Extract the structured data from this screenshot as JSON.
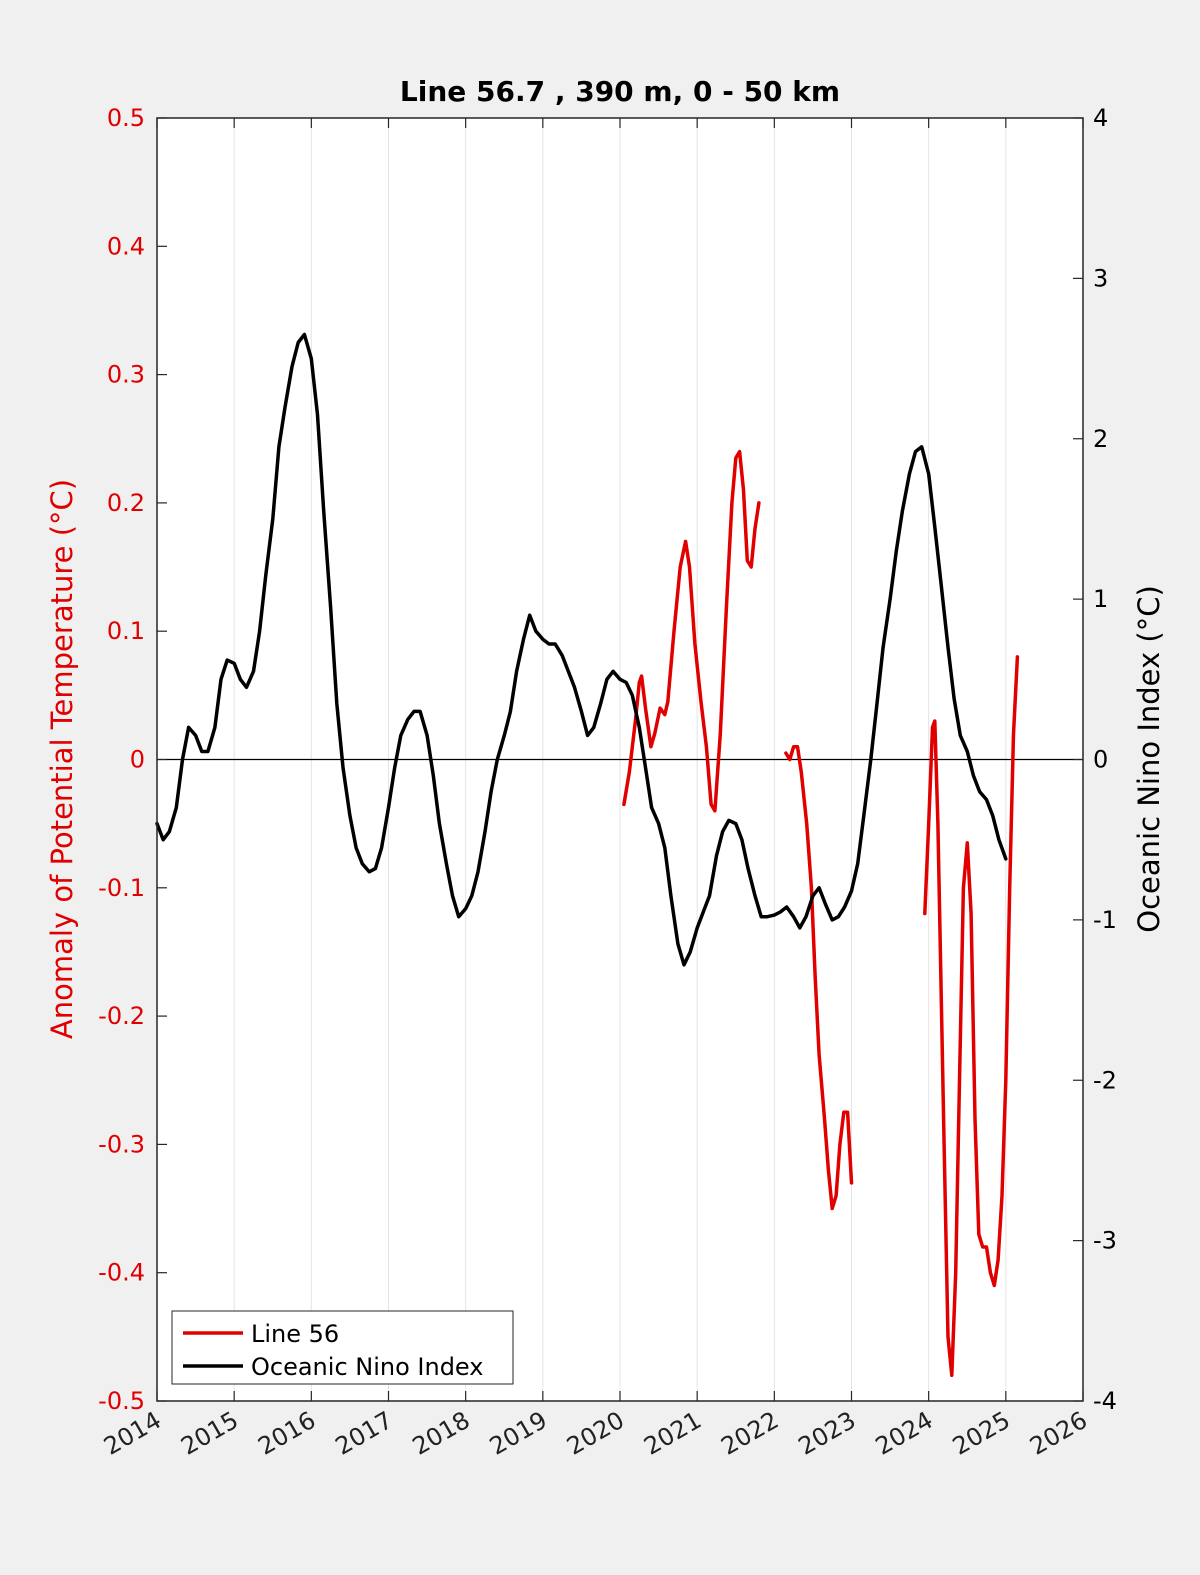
{
  "chart_data": {
    "type": "line",
    "title": "Line 56.7 , 390 m, 0 - 50 km",
    "ylabel_left": "Anomaly of Potential Temperature (°C)",
    "ylabel_right": "Oceanic Nino Index (°C)",
    "xlabel": "",
    "xlim": [
      2014,
      2026
    ],
    "ylim_left": [
      -0.5,
      0.5
    ],
    "ylim_right": [
      -4,
      4
    ],
    "x_ticks": [
      "2014",
      "2015",
      "2016",
      "2017",
      "2018",
      "2019",
      "2020",
      "2021",
      "2022",
      "2023",
      "2024",
      "2025",
      "2026"
    ],
    "y_left_ticks": [
      "0.5",
      "0.4",
      "0.3",
      "0.2",
      "0.1",
      "0",
      "-0.1",
      "-0.2",
      "-0.3",
      "-0.4",
      "-0.5"
    ],
    "y_right_ticks": [
      "4",
      "3",
      "2",
      "1",
      "0",
      "-1",
      "-2",
      "-3",
      "-4"
    ],
    "grid": "vertical",
    "legend_position": "bottom-left",
    "colors": {
      "line56": "#e00000",
      "oni": "#000000",
      "left_axis": "#e00000",
      "right_axis": "#000000"
    },
    "series": [
      {
        "name": "Line 56",
        "axis": "left",
        "color": "#e00000",
        "segments": [
          [
            [
              2020.05,
              -0.035
            ],
            [
              2020.12,
              -0.01
            ],
            [
              2020.2,
              0.03
            ],
            [
              2020.25,
              0.06
            ],
            [
              2020.28,
              0.065
            ],
            [
              2020.33,
              0.04
            ],
            [
              2020.4,
              0.01
            ],
            [
              2020.45,
              0.02
            ],
            [
              2020.52,
              0.04
            ],
            [
              2020.58,
              0.035
            ],
            [
              2020.62,
              0.045
            ],
            [
              2020.7,
              0.1
            ],
            [
              2020.78,
              0.15
            ],
            [
              2020.85,
              0.17
            ],
            [
              2020.9,
              0.15
            ],
            [
              2020.97,
              0.09
            ],
            [
              2021.05,
              0.045
            ],
            [
              2021.12,
              0.01
            ],
            [
              2021.18,
              -0.035
            ],
            [
              2021.23,
              -0.04
            ],
            [
              2021.3,
              0.02
            ],
            [
              2021.38,
              0.12
            ],
            [
              2021.45,
              0.2
            ],
            [
              2021.5,
              0.235
            ],
            [
              2021.55,
              0.24
            ],
            [
              2021.6,
              0.21
            ],
            [
              2021.65,
              0.155
            ],
            [
              2021.7,
              0.15
            ],
            [
              2021.75,
              0.18
            ],
            [
              2021.8,
              0.2
            ]
          ],
          [
            [
              2022.15,
              0.005
            ],
            [
              2022.2,
              0.0
            ],
            [
              2022.25,
              0.01
            ],
            [
              2022.3,
              0.01
            ],
            [
              2022.35,
              -0.01
            ],
            [
              2022.42,
              -0.05
            ],
            [
              2022.48,
              -0.1
            ],
            [
              2022.53,
              -0.17
            ],
            [
              2022.58,
              -0.23
            ],
            [
              2022.65,
              -0.28
            ],
            [
              2022.7,
              -0.32
            ],
            [
              2022.75,
              -0.35
            ],
            [
              2022.8,
              -0.34
            ],
            [
              2022.85,
              -0.3
            ],
            [
              2022.9,
              -0.275
            ],
            [
              2022.95,
              -0.275
            ],
            [
              2023.0,
              -0.33
            ]
          ],
          [
            [
              2023.95,
              -0.12
            ],
            [
              2024.0,
              -0.05
            ],
            [
              2024.05,
              0.025
            ],
            [
              2024.08,
              0.03
            ],
            [
              2024.12,
              -0.05
            ],
            [
              2024.2,
              -0.3
            ],
            [
              2024.25,
              -0.45
            ],
            [
              2024.3,
              -0.48
            ],
            [
              2024.35,
              -0.4
            ],
            [
              2024.4,
              -0.25
            ],
            [
              2024.45,
              -0.1
            ],
            [
              2024.5,
              -0.065
            ],
            [
              2024.55,
              -0.12
            ],
            [
              2024.6,
              -0.28
            ],
            [
              2024.65,
              -0.37
            ],
            [
              2024.7,
              -0.38
            ],
            [
              2024.75,
              -0.38
            ],
            [
              2024.8,
              -0.4
            ],
            [
              2024.85,
              -0.41
            ],
            [
              2024.9,
              -0.39
            ],
            [
              2024.95,
              -0.34
            ],
            [
              2025.0,
              -0.25
            ],
            [
              2025.05,
              -0.1
            ],
            [
              2025.1,
              0.02
            ],
            [
              2025.15,
              0.08
            ]
          ]
        ]
      },
      {
        "name": "Oceanic Nino Index",
        "axis": "right",
        "color": "#000000",
        "points": [
          [
            2014.0,
            -0.4
          ],
          [
            2014.08,
            -0.5
          ],
          [
            2014.16,
            -0.45
          ],
          [
            2014.25,
            -0.3
          ],
          [
            2014.33,
            0.0
          ],
          [
            2014.41,
            0.2
          ],
          [
            2014.5,
            0.15
          ],
          [
            2014.58,
            0.05
          ],
          [
            2014.66,
            0.05
          ],
          [
            2014.75,
            0.2
          ],
          [
            2014.83,
            0.5
          ],
          [
            2014.91,
            0.62
          ],
          [
            2015.0,
            0.6
          ],
          [
            2015.08,
            0.5
          ],
          [
            2015.16,
            0.45
          ],
          [
            2015.25,
            0.55
          ],
          [
            2015.33,
            0.8
          ],
          [
            2015.41,
            1.15
          ],
          [
            2015.5,
            1.5
          ],
          [
            2015.58,
            1.95
          ],
          [
            2015.66,
            2.2
          ],
          [
            2015.75,
            2.45
          ],
          [
            2015.83,
            2.6
          ],
          [
            2015.91,
            2.65
          ],
          [
            2016.0,
            2.5
          ],
          [
            2016.08,
            2.15
          ],
          [
            2016.16,
            1.55
          ],
          [
            2016.25,
            0.95
          ],
          [
            2016.33,
            0.35
          ],
          [
            2016.41,
            -0.05
          ],
          [
            2016.5,
            -0.35
          ],
          [
            2016.58,
            -0.55
          ],
          [
            2016.66,
            -0.65
          ],
          [
            2016.75,
            -0.7
          ],
          [
            2016.83,
            -0.68
          ],
          [
            2016.91,
            -0.55
          ],
          [
            2017.0,
            -0.3
          ],
          [
            2017.08,
            -0.05
          ],
          [
            2017.16,
            0.15
          ],
          [
            2017.25,
            0.25
          ],
          [
            2017.33,
            0.3
          ],
          [
            2017.41,
            0.3
          ],
          [
            2017.5,
            0.15
          ],
          [
            2017.58,
            -0.1
          ],
          [
            2017.66,
            -0.4
          ],
          [
            2017.75,
            -0.65
          ],
          [
            2017.83,
            -0.85
          ],
          [
            2017.91,
            -0.98
          ],
          [
            2018.0,
            -0.93
          ],
          [
            2018.08,
            -0.85
          ],
          [
            2018.16,
            -0.7
          ],
          [
            2018.25,
            -0.45
          ],
          [
            2018.33,
            -0.2
          ],
          [
            2018.41,
            0.0
          ],
          [
            2018.5,
            0.15
          ],
          [
            2018.58,
            0.3
          ],
          [
            2018.66,
            0.55
          ],
          [
            2018.75,
            0.75
          ],
          [
            2018.83,
            0.9
          ],
          [
            2018.91,
            0.8
          ],
          [
            2019.0,
            0.75
          ],
          [
            2019.08,
            0.72
          ],
          [
            2019.16,
            0.72
          ],
          [
            2019.25,
            0.65
          ],
          [
            2019.33,
            0.55
          ],
          [
            2019.41,
            0.45
          ],
          [
            2019.5,
            0.3
          ],
          [
            2019.58,
            0.15
          ],
          [
            2019.66,
            0.2
          ],
          [
            2019.75,
            0.35
          ],
          [
            2019.83,
            0.5
          ],
          [
            2019.91,
            0.55
          ],
          [
            2020.0,
            0.5
          ],
          [
            2020.08,
            0.48
          ],
          [
            2020.16,
            0.4
          ],
          [
            2020.25,
            0.2
          ],
          [
            2020.33,
            -0.05
          ],
          [
            2020.41,
            -0.3
          ],
          [
            2020.5,
            -0.4
          ],
          [
            2020.58,
            -0.55
          ],
          [
            2020.66,
            -0.85
          ],
          [
            2020.75,
            -1.15
          ],
          [
            2020.83,
            -1.28
          ],
          [
            2020.91,
            -1.2
          ],
          [
            2021.0,
            -1.05
          ],
          [
            2021.08,
            -0.95
          ],
          [
            2021.16,
            -0.85
          ],
          [
            2021.25,
            -0.6
          ],
          [
            2021.33,
            -0.45
          ],
          [
            2021.41,
            -0.38
          ],
          [
            2021.5,
            -0.4
          ],
          [
            2021.58,
            -0.5
          ],
          [
            2021.66,
            -0.68
          ],
          [
            2021.75,
            -0.85
          ],
          [
            2021.83,
            -0.98
          ],
          [
            2021.91,
            -0.98
          ],
          [
            2022.0,
            -0.97
          ],
          [
            2022.08,
            -0.95
          ],
          [
            2022.16,
            -0.92
          ],
          [
            2022.25,
            -0.98
          ],
          [
            2022.33,
            -1.05
          ],
          [
            2022.41,
            -0.98
          ],
          [
            2022.5,
            -0.85
          ],
          [
            2022.58,
            -0.8
          ],
          [
            2022.66,
            -0.9
          ],
          [
            2022.75,
            -1.0
          ],
          [
            2022.83,
            -0.98
          ],
          [
            2022.91,
            -0.92
          ],
          [
            2023.0,
            -0.82
          ],
          [
            2023.08,
            -0.65
          ],
          [
            2023.16,
            -0.35
          ],
          [
            2023.25,
            0.0
          ],
          [
            2023.33,
            0.35
          ],
          [
            2023.41,
            0.7
          ],
          [
            2023.5,
            1.0
          ],
          [
            2023.58,
            1.3
          ],
          [
            2023.66,
            1.55
          ],
          [
            2023.75,
            1.78
          ],
          [
            2023.83,
            1.92
          ],
          [
            2023.91,
            1.95
          ],
          [
            2024.0,
            1.78
          ],
          [
            2024.08,
            1.45
          ],
          [
            2024.16,
            1.1
          ],
          [
            2024.25,
            0.7
          ],
          [
            2024.33,
            0.38
          ],
          [
            2024.41,
            0.15
          ],
          [
            2024.5,
            0.05
          ],
          [
            2024.58,
            -0.1
          ],
          [
            2024.66,
            -0.2
          ],
          [
            2024.75,
            -0.25
          ],
          [
            2024.83,
            -0.35
          ],
          [
            2024.91,
            -0.5
          ],
          [
            2025.0,
            -0.62
          ]
        ]
      }
    ]
  }
}
